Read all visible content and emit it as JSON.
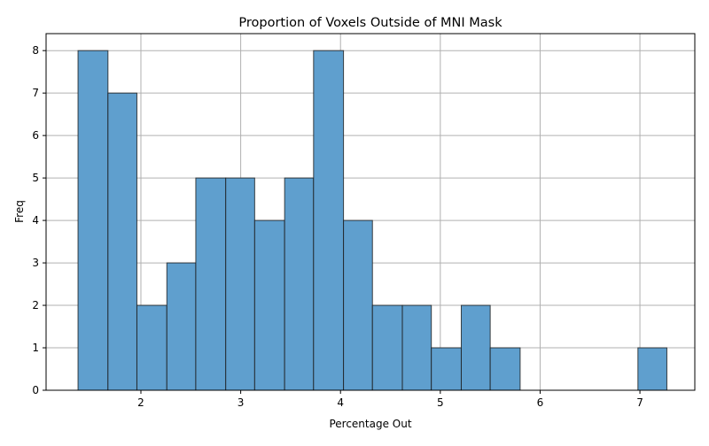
{
  "chart_data": {
    "type": "bar",
    "title": "Proportion of Voxels Outside of MNI Mask",
    "xlabel": "Percentage Out",
    "ylabel": "Freq",
    "grid": true,
    "bar_color": "#5f9fce",
    "bar_edge_color": "#1a1a1a",
    "xlim": [
      1.05,
      7.55
    ],
    "ylim": [
      0,
      8.4
    ],
    "x_ticks": [
      2,
      3,
      4,
      5,
      6,
      7
    ],
    "y_ticks": [
      0,
      1,
      2,
      3,
      4,
      5,
      6,
      7,
      8
    ],
    "bins": [
      {
        "x0": 1.37,
        "x1": 1.67,
        "count": 8
      },
      {
        "x0": 1.67,
        "x1": 1.96,
        "count": 7
      },
      {
        "x0": 1.96,
        "x1": 2.26,
        "count": 2
      },
      {
        "x0": 2.26,
        "x1": 2.55,
        "count": 3
      },
      {
        "x0": 2.55,
        "x1": 2.85,
        "count": 5
      },
      {
        "x0": 2.85,
        "x1": 3.14,
        "count": 5
      },
      {
        "x0": 3.14,
        "x1": 3.44,
        "count": 4
      },
      {
        "x0": 3.44,
        "x1": 3.73,
        "count": 5
      },
      {
        "x0": 3.73,
        "x1": 4.03,
        "count": 8
      },
      {
        "x0": 4.03,
        "x1": 4.32,
        "count": 4
      },
      {
        "x0": 4.32,
        "x1": 4.62,
        "count": 2
      },
      {
        "x0": 4.62,
        "x1": 4.91,
        "count": 2
      },
      {
        "x0": 4.91,
        "x1": 5.21,
        "count": 1
      },
      {
        "x0": 5.21,
        "x1": 5.5,
        "count": 2
      },
      {
        "x0": 5.5,
        "x1": 5.8,
        "count": 1
      },
      {
        "x0": 5.8,
        "x1": 6.09,
        "count": 0
      },
      {
        "x0": 6.09,
        "x1": 6.39,
        "count": 0
      },
      {
        "x0": 6.39,
        "x1": 6.68,
        "count": 0
      },
      {
        "x0": 6.68,
        "x1": 6.98,
        "count": 0
      },
      {
        "x0": 6.98,
        "x1": 7.27,
        "count": 1
      }
    ]
  }
}
